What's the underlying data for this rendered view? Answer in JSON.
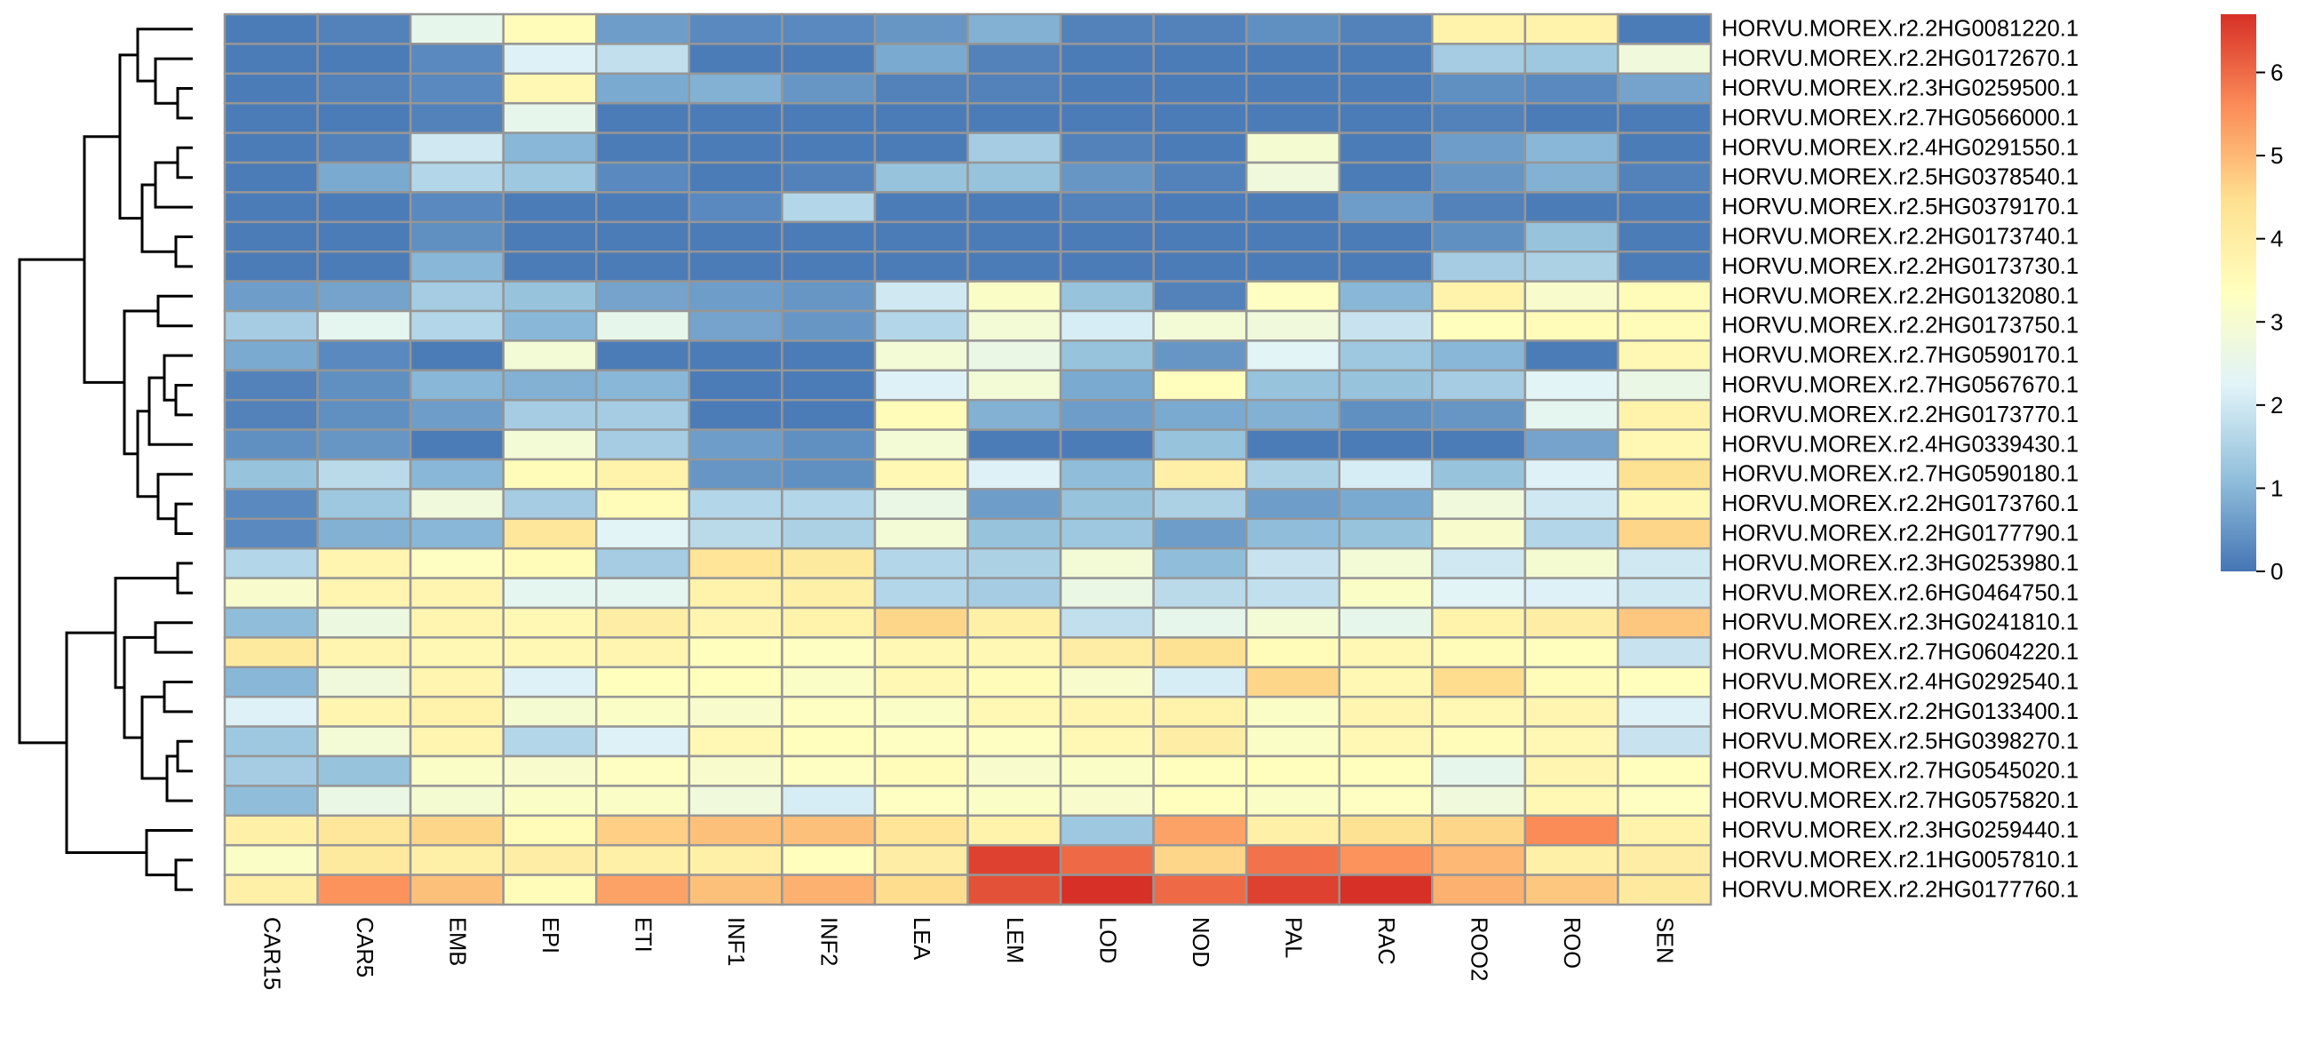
{
  "chart_data": {
    "type": "heatmap",
    "columns": [
      "CAR15",
      "CAR5",
      "EMB",
      "EPI",
      "ETI",
      "INF1",
      "INF2",
      "LEA",
      "LEM",
      "LOD",
      "NOD",
      "PAL",
      "RAC",
      "ROO2",
      "ROO",
      "SEN"
    ],
    "rows": [
      "HORVU.MOREX.r2.2HG0081220.1",
      "HORVU.MOREX.r2.2HG0172670.1",
      "HORVU.MOREX.r2.3HG0259500.1",
      "HORVU.MOREX.r2.7HG0566000.1",
      "HORVU.MOREX.r2.4HG0291550.1",
      "HORVU.MOREX.r2.5HG0378540.1",
      "HORVU.MOREX.r2.5HG0379170.1",
      "HORVU.MOREX.r2.2HG0173740.1",
      "HORVU.MOREX.r2.2HG0173730.1",
      "HORVU.MOREX.r2.2HG0132080.1",
      "HORVU.MOREX.r2.2HG0173750.1",
      "HORVU.MOREX.r2.7HG0590170.1",
      "HORVU.MOREX.r2.7HG0567670.1",
      "HORVU.MOREX.r2.2HG0173770.1",
      "HORVU.MOREX.r2.4HG0339430.1",
      "HORVU.MOREX.r2.7HG0590180.1",
      "HORVU.MOREX.r2.2HG0173760.1",
      "HORVU.MOREX.r2.2HG0177790.1",
      "HORVU.MOREX.r2.3HG0253980.1",
      "HORVU.MOREX.r2.6HG0464750.1",
      "HORVU.MOREX.r2.3HG0241810.1",
      "HORVU.MOREX.r2.7HG0604220.1",
      "HORVU.MOREX.r2.4HG0292540.1",
      "HORVU.MOREX.r2.2HG0133400.1",
      "HORVU.MOREX.r2.5HG0398270.1",
      "HORVU.MOREX.r2.7HG0545020.1",
      "HORVU.MOREX.r2.7HG0575820.1",
      "HORVU.MOREX.r2.3HG0259440.1",
      "HORVU.MOREX.r2.1HG0057810.1",
      "HORVU.MOREX.r2.2HG0177760.1"
    ],
    "values": [
      [
        0.1,
        0.2,
        2.5,
        3.5,
        0.6,
        0.3,
        0.3,
        0.5,
        0.9,
        0.2,
        0.2,
        0.4,
        0.2,
        3.8,
        3.8,
        0.1
      ],
      [
        0.1,
        0.1,
        0.3,
        2.2,
        1.8,
        0.1,
        0.1,
        0.8,
        0.2,
        0.1,
        0.1,
        0.1,
        0.1,
        1.4,
        1.3,
        2.8
      ],
      [
        0.1,
        0.2,
        0.3,
        3.6,
        0.8,
        0.9,
        0.5,
        0.2,
        0.2,
        0.1,
        0.1,
        0.1,
        0.1,
        0.4,
        0.3,
        0.7
      ],
      [
        0.1,
        0.1,
        0.2,
        2.5,
        0.1,
        0.1,
        0.1,
        0.1,
        0.1,
        0.1,
        0.1,
        0.1,
        0.1,
        0.2,
        0.1,
        0.1
      ],
      [
        0.1,
        0.2,
        2.0,
        1.0,
        0.1,
        0.1,
        0.1,
        0.1,
        1.4,
        0.2,
        0.1,
        3.0,
        0.1,
        0.6,
        1.0,
        0.1
      ],
      [
        0.1,
        0.8,
        1.6,
        1.3,
        0.3,
        0.1,
        0.2,
        1.2,
        1.2,
        0.5,
        0.2,
        2.8,
        0.1,
        0.5,
        0.9,
        0.2
      ],
      [
        0.1,
        0.1,
        0.3,
        0.1,
        0.1,
        0.3,
        1.6,
        0.1,
        0.1,
        0.2,
        0.1,
        0.1,
        0.6,
        0.2,
        0.1,
        0.1
      ],
      [
        0.1,
        0.1,
        0.4,
        0.1,
        0.1,
        0.1,
        0.1,
        0.1,
        0.1,
        0.1,
        0.1,
        0.1,
        0.1,
        0.4,
        1.2,
        0.1
      ],
      [
        0.1,
        0.1,
        1.0,
        0.1,
        0.1,
        0.1,
        0.1,
        0.1,
        0.1,
        0.1,
        0.1,
        0.1,
        0.1,
        1.4,
        1.5,
        0.1
      ],
      [
        0.6,
        0.7,
        1.4,
        1.2,
        0.7,
        0.6,
        0.5,
        2.0,
        3.2,
        1.2,
        0.2,
        3.3,
        1.0,
        3.8,
        3.1,
        3.5
      ],
      [
        1.4,
        2.4,
        1.6,
        1.0,
        2.5,
        0.7,
        0.5,
        1.6,
        2.9,
        2.1,
        2.9,
        2.8,
        1.9,
        3.4,
        3.5,
        3.5
      ],
      [
        0.8,
        0.3,
        0.1,
        2.9,
        0.1,
        0.1,
        0.1,
        2.9,
        2.6,
        1.2,
        0.5,
        2.3,
        1.3,
        1.0,
        0.1,
        3.6
      ],
      [
        0.2,
        0.4,
        1.0,
        0.9,
        1.0,
        0.1,
        0.1,
        2.2,
        2.9,
        0.8,
        3.4,
        1.2,
        1.2,
        1.4,
        2.3,
        2.6
      ],
      [
        0.2,
        0.4,
        0.6,
        1.4,
        1.4,
        0.1,
        0.1,
        3.5,
        0.9,
        0.6,
        0.8,
        0.9,
        0.4,
        0.5,
        2.4,
        3.8
      ],
      [
        0.4,
        0.5,
        0.1,
        2.9,
        1.4,
        0.6,
        0.4,
        2.9,
        0.1,
        0.1,
        1.2,
        0.1,
        0.1,
        0.1,
        0.7,
        3.6
      ],
      [
        1.2,
        1.7,
        1.0,
        3.5,
        3.8,
        0.5,
        0.4,
        3.6,
        2.2,
        1.1,
        3.9,
        1.5,
        2.1,
        1.2,
        2.2,
        4.4
      ],
      [
        0.3,
        1.3,
        2.8,
        1.4,
        3.5,
        1.6,
        1.6,
        2.6,
        0.6,
        1.2,
        1.5,
        0.6,
        0.8,
        2.8,
        2.0,
        3.6
      ],
      [
        0.3,
        0.9,
        1.0,
        4.2,
        2.3,
        1.7,
        1.5,
        2.9,
        1.2,
        1.3,
        0.6,
        1.1,
        1.2,
        3.1,
        1.6,
        4.6
      ],
      [
        1.6,
        3.7,
        3.3,
        3.5,
        1.4,
        4.3,
        4.1,
        1.6,
        1.5,
        2.9,
        1.1,
        1.9,
        2.9,
        2.0,
        3.0,
        2.0
      ],
      [
        3.1,
        3.7,
        3.7,
        2.4,
        2.4,
        3.8,
        3.9,
        1.6,
        1.4,
        2.6,
        1.7,
        1.8,
        3.2,
        2.3,
        2.2,
        2.0
      ],
      [
        1.1,
        2.7,
        3.7,
        3.6,
        4.0,
        3.7,
        3.8,
        4.6,
        3.9,
        1.8,
        2.5,
        2.9,
        2.5,
        3.8,
        4.0,
        4.8
      ],
      [
        4.1,
        3.7,
        3.6,
        3.6,
        3.7,
        3.4,
        3.3,
        3.6,
        3.6,
        4.0,
        4.4,
        3.5,
        3.6,
        3.5,
        3.4,
        1.9
      ],
      [
        1.0,
        2.8,
        3.7,
        2.2,
        3.4,
        3.4,
        3.2,
        3.6,
        3.5,
        3.1,
        2.1,
        4.6,
        3.6,
        4.5,
        3.5,
        3.4
      ],
      [
        2.2,
        3.7,
        3.8,
        3.0,
        3.2,
        3.1,
        3.3,
        3.2,
        3.6,
        3.7,
        3.8,
        3.2,
        3.7,
        3.6,
        3.7,
        2.2
      ],
      [
        1.3,
        2.9,
        3.7,
        1.6,
        2.2,
        3.6,
        3.4,
        3.3,
        3.3,
        3.6,
        4.0,
        3.2,
        3.6,
        3.5,
        3.6,
        1.9
      ],
      [
        1.4,
        1.2,
        3.2,
        3.1,
        3.3,
        3.1,
        3.3,
        3.5,
        3.1,
        3.2,
        3.4,
        3.4,
        3.4,
        2.5,
        3.7,
        3.4
      ],
      [
        1.1,
        2.6,
        3.0,
        3.2,
        3.2,
        2.8,
        2.1,
        3.3,
        3.2,
        3.1,
        3.4,
        3.2,
        3.3,
        2.8,
        3.6,
        3.3
      ],
      [
        3.9,
        4.2,
        4.6,
        3.5,
        4.7,
        4.9,
        4.9,
        4.3,
        3.8,
        1.3,
        5.3,
        3.9,
        4.4,
        4.6,
        5.6,
        3.8
      ],
      [
        3.2,
        4.1,
        3.9,
        4.0,
        3.9,
        3.9,
        3.4,
        4.0,
        6.5,
        6.0,
        4.6,
        5.9,
        5.5,
        5.0,
        3.9,
        4.0
      ],
      [
        3.9,
        5.5,
        4.9,
        3.5,
        5.3,
        4.9,
        5.1,
        4.5,
        6.3,
        6.7,
        6.0,
        6.5,
        6.7,
        5.1,
        4.8,
        4.1
      ]
    ],
    "color_scale": {
      "min": 0,
      "max": 6.7,
      "stops": [
        "#4575b4",
        "#91bfdb",
        "#e0f3f8",
        "#ffffbf",
        "#fee090",
        "#fc8d59",
        "#d73027"
      ]
    },
    "legend_ticks": [
      0,
      1,
      2,
      3,
      4,
      5,
      6
    ],
    "cell_border_color": "#969696",
    "dendrogram": "rows"
  }
}
